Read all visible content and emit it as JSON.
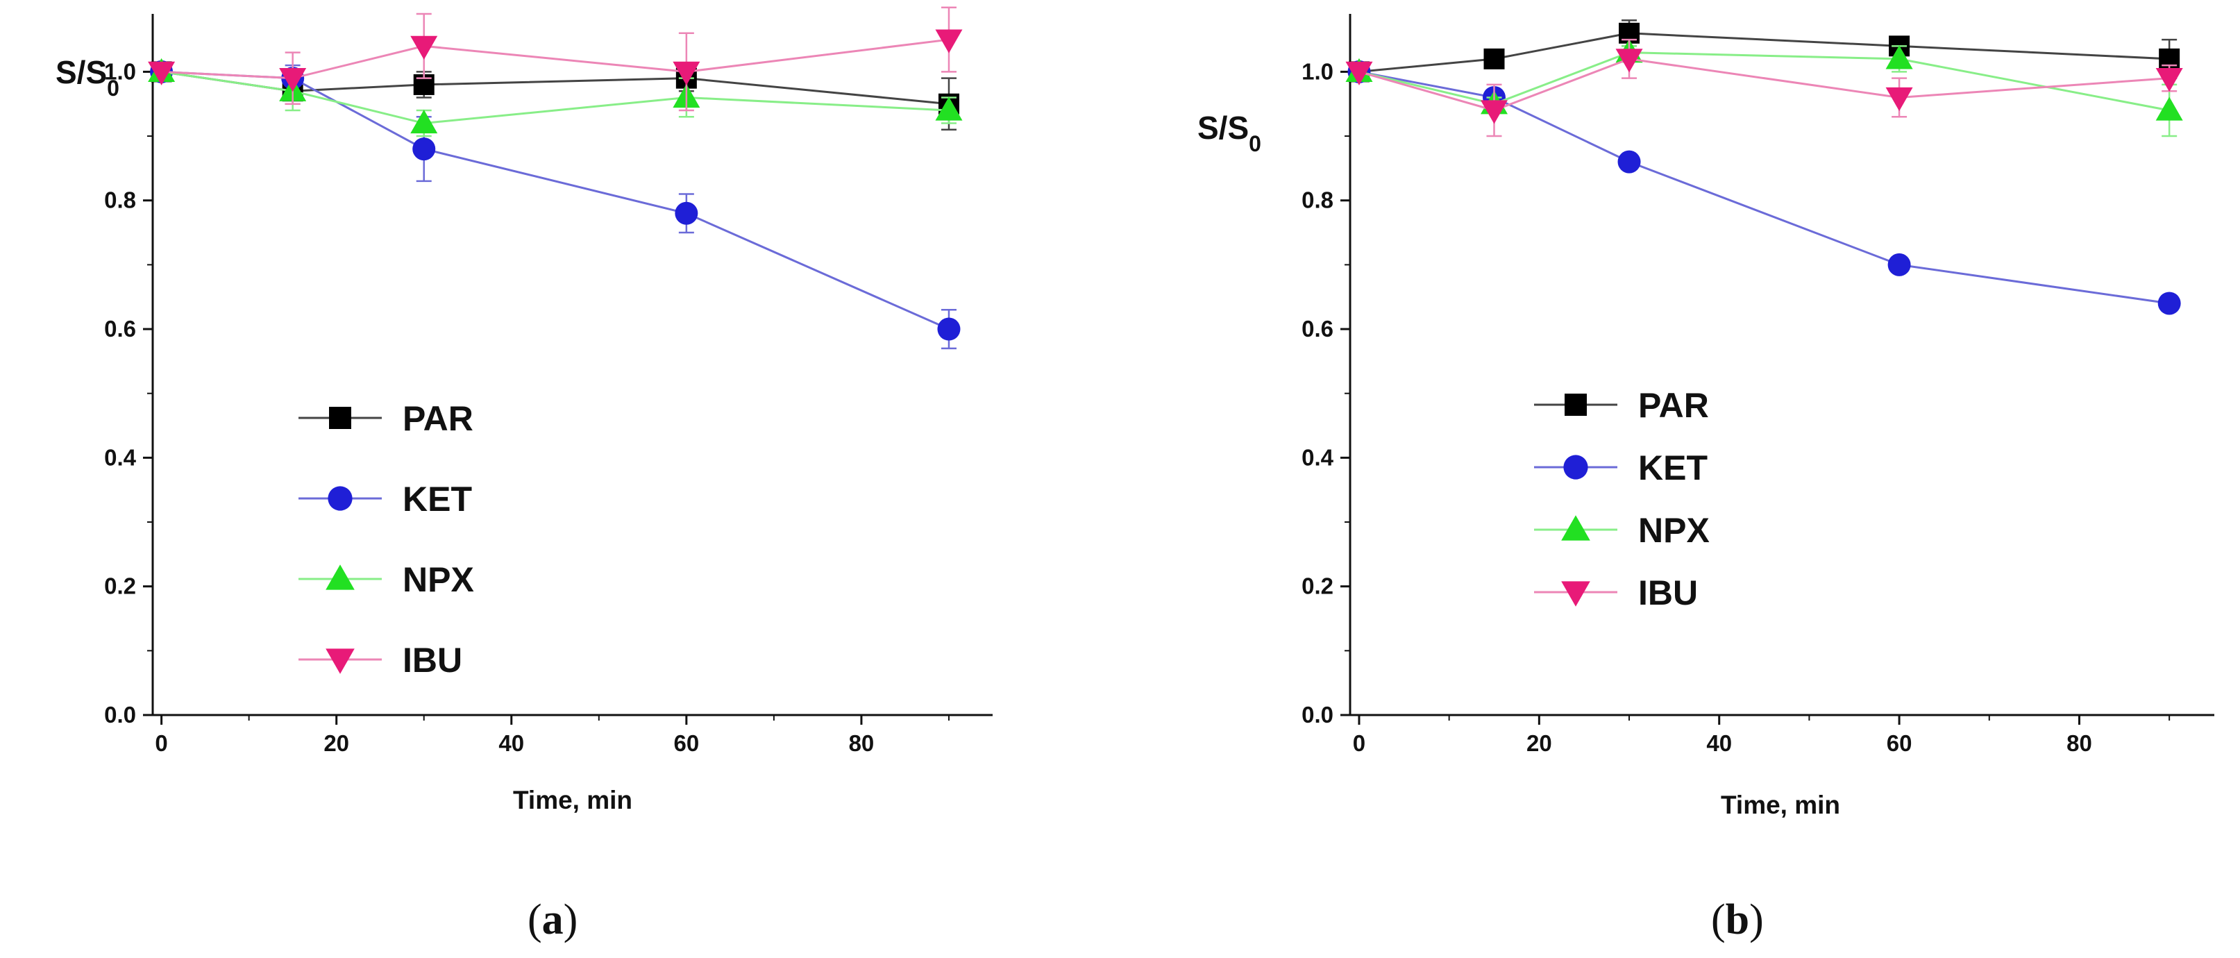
{
  "chart_data": [
    {
      "type": "line",
      "panel": "a",
      "panel_label": {
        "open": "(",
        "letter": "a",
        "close": ")"
      },
      "xlabel": "Time, min",
      "ylabel": {
        "main": "S/S",
        "sub": "0"
      },
      "xlim": [
        -1,
        95
      ],
      "ylim": [
        0,
        1.09
      ],
      "xticks": [
        0,
        20,
        40,
        60,
        80
      ],
      "xtick_labels": [
        "0",
        "20",
        "40",
        "60",
        "80"
      ],
      "yticks": [
        0.0,
        0.2,
        0.4,
        0.6,
        0.8,
        1.0
      ],
      "ytick_labels": [
        "0.0",
        "0.2",
        "0.4",
        "0.6",
        "0.8",
        "1.0"
      ],
      "legend_position": "center-left",
      "series": [
        {
          "name": "PAR",
          "marker": "square",
          "color": "#000000",
          "line_color": "#444444",
          "x": [
            0,
            15,
            30,
            60,
            90
          ],
          "y": [
            1.0,
            0.97,
            0.98,
            0.99,
            0.95
          ],
          "err": [
            0,
            0.02,
            0.02,
            0.02,
            0.04
          ]
        },
        {
          "name": "KET",
          "marker": "circle",
          "color": "#1f1fd6",
          "line_color": "#6b6bd8",
          "x": [
            0,
            15,
            30,
            60,
            90
          ],
          "y": [
            1.0,
            0.99,
            0.88,
            0.78,
            0.6
          ],
          "err": [
            0,
            0.02,
            0.05,
            0.03,
            0.03
          ]
        },
        {
          "name": "NPX",
          "marker": "triangle-up",
          "color": "#22e022",
          "line_color": "#88ee88",
          "x": [
            0,
            15,
            30,
            60,
            90
          ],
          "y": [
            1.0,
            0.97,
            0.92,
            0.96,
            0.94
          ],
          "err": [
            0,
            0.03,
            0.02,
            0.03,
            0.02
          ]
        },
        {
          "name": "IBU",
          "marker": "triangle-down",
          "color": "#e81a78",
          "line_color": "#ec86b6",
          "x": [
            0,
            15,
            30,
            60,
            90
          ],
          "y": [
            1.0,
            0.99,
            1.04,
            1.0,
            1.05
          ],
          "err": [
            0,
            0.04,
            0.05,
            0.06,
            0.05
          ]
        }
      ]
    },
    {
      "type": "line",
      "panel": "b",
      "panel_label": {
        "open": "(",
        "letter": "b",
        "close": ")"
      },
      "xlabel": "Time, min",
      "ylabel": {
        "main": "S/S",
        "sub": "0"
      },
      "xlim": [
        -1,
        95
      ],
      "ylim": [
        0,
        1.09
      ],
      "xticks": [
        0,
        20,
        40,
        60,
        80
      ],
      "xtick_labels": [
        "0",
        "20",
        "40",
        "60",
        "80"
      ],
      "yticks": [
        0.0,
        0.2,
        0.4,
        0.6,
        0.8,
        1.0
      ],
      "ytick_labels": [
        "0.0",
        "0.2",
        "0.4",
        "0.6",
        "0.8",
        "1.0"
      ],
      "legend_position": "center-left",
      "series": [
        {
          "name": "PAR",
          "marker": "square",
          "color": "#000000",
          "line_color": "#444444",
          "x": [
            0,
            15,
            30,
            60,
            90
          ],
          "y": [
            1.0,
            1.02,
            1.06,
            1.04,
            1.02
          ],
          "err": [
            0,
            0.01,
            0.02,
            0.01,
            0.03
          ]
        },
        {
          "name": "KET",
          "marker": "circle",
          "color": "#1f1fd6",
          "line_color": "#6b6bd8",
          "x": [
            0,
            15,
            30,
            60,
            90
          ],
          "y": [
            1.0,
            0.96,
            0.86,
            0.7,
            0.64
          ],
          "err": [
            0,
            0.01,
            0.01,
            0.01,
            0.01
          ]
        },
        {
          "name": "NPX",
          "marker": "triangle-up",
          "color": "#22e022",
          "line_color": "#88ee88",
          "x": [
            0,
            15,
            30,
            60,
            90
          ],
          "y": [
            1.0,
            0.95,
            1.03,
            1.02,
            0.94
          ],
          "err": [
            0,
            0.01,
            0.01,
            0.02,
            0.04
          ]
        },
        {
          "name": "IBU",
          "marker": "triangle-down",
          "color": "#e81a78",
          "line_color": "#ec86b6",
          "x": [
            0,
            15,
            30,
            60,
            90
          ],
          "y": [
            1.0,
            0.94,
            1.02,
            0.96,
            0.99
          ],
          "err": [
            0,
            0.04,
            0.03,
            0.03,
            0.02
          ]
        }
      ]
    }
  ]
}
